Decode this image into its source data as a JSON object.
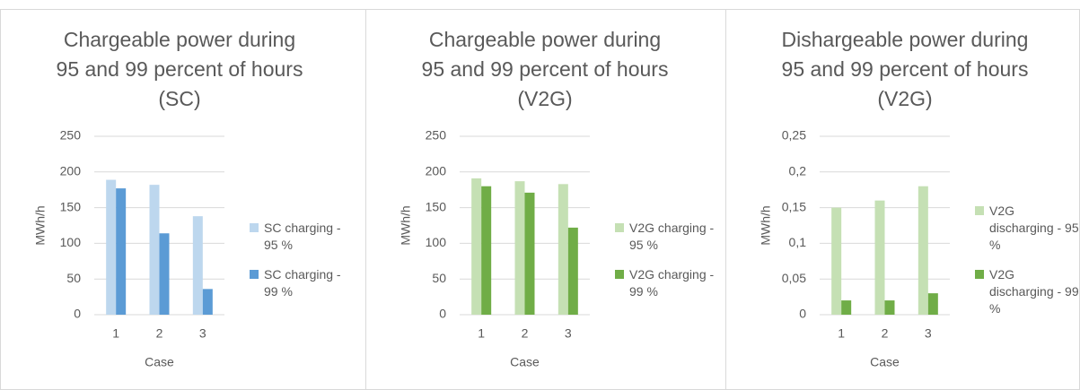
{
  "chart_data": [
    {
      "type": "bar",
      "title": "Chargeable power during\n95 and 99 percent of hours\n(SC)",
      "x_label": "Case",
      "y_label": "MWh/h",
      "categories": [
        "1",
        "2",
        "3"
      ],
      "series": [
        {
          "name": "SC charging - 95 %",
          "color": "#bdd7ee",
          "values": [
            189,
            182,
            138
          ]
        },
        {
          "name": "SC charging - 99 %",
          "color": "#5b9bd5",
          "values": [
            177,
            114,
            36
          ]
        }
      ],
      "ylim": [
        0,
        250
      ],
      "yticks": [
        0,
        50,
        100,
        150,
        200,
        250
      ],
      "grid": true,
      "legend": "right"
    },
    {
      "type": "bar",
      "title": "Chargeable power during\n95 and 99 percent of hours\n(V2G)",
      "x_label": "Case",
      "y_label": "MWh/h",
      "categories": [
        "1",
        "2",
        "3"
      ],
      "series": [
        {
          "name": "V2G charging - 95 %",
          "color": "#c5e0b4",
          "values": [
            191,
            187,
            183
          ]
        },
        {
          "name": "V2G charging - 99 %",
          "color": "#70ad47",
          "values": [
            180,
            171,
            122
          ]
        }
      ],
      "ylim": [
        0,
        250
      ],
      "yticks": [
        0,
        50,
        100,
        150,
        200,
        250
      ],
      "grid": true,
      "legend": "right"
    },
    {
      "type": "bar",
      "title": "Dishargeable power during\n95 and 99 percent of hours\n(V2G)",
      "x_label": "Case",
      "y_label": "MWh/h",
      "categories": [
        "1",
        "2",
        "3"
      ],
      "series": [
        {
          "name": "V2G discharging - 95 %",
          "color": "#c5e0b4",
          "values": [
            0.15,
            0.16,
            0.18
          ]
        },
        {
          "name": "V2G discharging - 99 %",
          "color": "#70ad47",
          "values": [
            0.02,
            0.02,
            0.03
          ]
        }
      ],
      "ylim": [
        0,
        0.25
      ],
      "yticks": [
        0,
        {
          "value": 0.05,
          "label": "0,05"
        },
        {
          "value": 0.1,
          "label": "0,1"
        },
        {
          "value": 0.15,
          "label": "0,15"
        },
        {
          "value": 0.2,
          "label": "0,2"
        },
        {
          "value": 0.25,
          "label": "0,25"
        }
      ],
      "grid": true,
      "legend": "right"
    }
  ]
}
